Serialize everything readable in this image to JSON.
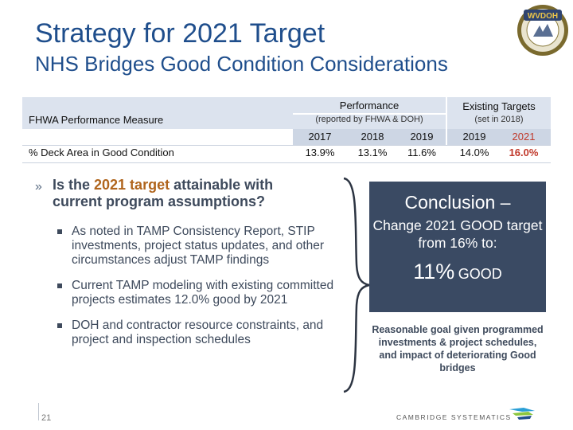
{
  "title": "Strategy for 2021 Target",
  "subtitle": "NHS Bridges Good Condition Considerations",
  "logo": {
    "text": "WVDOH",
    "icon": "wvdoh-seal-icon"
  },
  "table": {
    "measure_header": "FHWA Performance Measure",
    "performance_header": "Performance",
    "performance_sub": "(reported by FHWA & DOH)",
    "targets_header": "Existing Targets",
    "targets_sub": "(set in 2018)",
    "years": [
      "2017",
      "2018",
      "2019",
      "2019",
      "2021"
    ],
    "row": {
      "label": "% Deck Area in Good Condition",
      "values": [
        "13.9%",
        "13.1%",
        "11.6%",
        "14.0%",
        "16.0%"
      ]
    }
  },
  "question": {
    "prefix": "Is the ",
    "highlight": "2021 target",
    "suffix": " attainable with current program assumptions?"
  },
  "bullets": [
    "As noted in TAMP Consistency Report, STIP investments, project status updates, and other circumstances adjust TAMP findings",
    "Current TAMP modeling with existing committed projects estimates 12.0% good by 2021",
    "DOH and contractor resource constraints, and project and inspection schedules"
  ],
  "conclusion": {
    "heading": "Conclusion –",
    "body": "Change 2021 GOOD target from 16% to:",
    "percent": "11%",
    "good": "GOOD"
  },
  "note": "Reasonable goal given programmed investments & project schedules, and impact of deteriorating Good bridges",
  "page_number": "21",
  "footer_logo": "CAMBRIDGE SYSTEMATICS",
  "colors": {
    "title": "#1f4e8c",
    "box": "#3a4a63",
    "highlight": "#b0651d",
    "target_red": "#c0392b",
    "header_bg": "#dce3ee"
  }
}
